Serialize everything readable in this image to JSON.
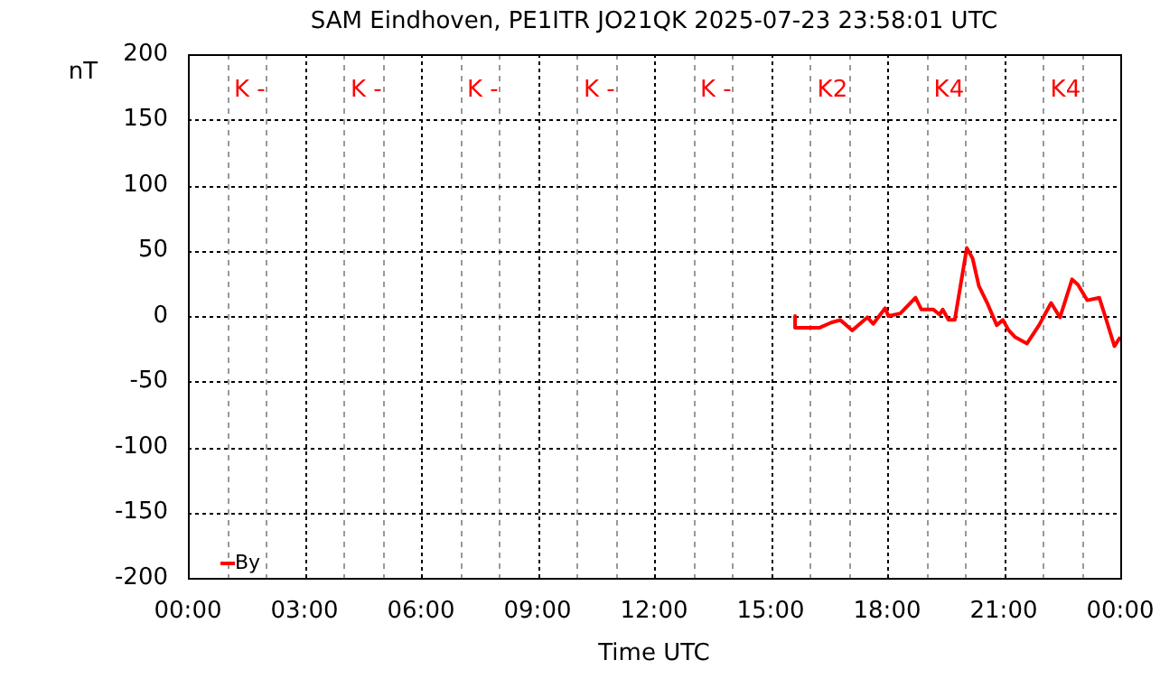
{
  "chart_data": {
    "type": "line",
    "title": "SAM Eindhoven, PE1ITR JO21QK 2025-07-23 23:58:01 UTC",
    "xlabel": "Time UTC",
    "ylabel": "nT",
    "x": [
      15.63,
      15.63,
      16.25,
      16.56,
      16.79,
      16.95,
      17.1,
      17.49,
      17.64,
      17.95,
      18.03,
      18.34,
      18.73,
      18.88,
      19.19,
      19.35,
      19.43,
      19.58,
      19.74,
      20.05,
      20.2,
      20.36,
      20.59,
      20.82,
      20.98,
      21.13,
      21.29,
      21.6,
      21.91,
      22.22,
      22.45,
      22.76,
      22.91,
      23.15,
      23.46,
      23.61,
      23.85,
      24.0
    ],
    "series": [
      {
        "name": "By",
        "color": "#ff0000",
        "values": [
          0,
          -9,
          -9,
          -5,
          -3,
          -7,
          -11,
          -1,
          -6,
          6,
          0,
          2,
          14,
          5,
          5,
          1,
          5,
          -3,
          -3,
          52,
          44,
          23,
          9,
          -7,
          -3,
          -11,
          -16,
          -21,
          -7,
          10,
          -1,
          28,
          24,
          12,
          14,
          0,
          -23,
          -16
        ]
      }
    ],
    "xlim": [
      0,
      24
    ],
    "xticks": [
      {
        "value": 0,
        "label": "00:00"
      },
      {
        "value": 1,
        "label": null
      },
      {
        "value": 2,
        "label": null
      },
      {
        "value": 3,
        "label": "03:00"
      },
      {
        "value": 4,
        "label": null
      },
      {
        "value": 5,
        "label": null
      },
      {
        "value": 6,
        "label": "06:00"
      },
      {
        "value": 7,
        "label": null
      },
      {
        "value": 8,
        "label": null
      },
      {
        "value": 9,
        "label": "09:00"
      },
      {
        "value": 10,
        "label": null
      },
      {
        "value": 11,
        "label": null
      },
      {
        "value": 12,
        "label": "12:00"
      },
      {
        "value": 13,
        "label": null
      },
      {
        "value": 14,
        "label": null
      },
      {
        "value": 15,
        "label": "15:00"
      },
      {
        "value": 16,
        "label": null
      },
      {
        "value": 17,
        "label": null
      },
      {
        "value": 18,
        "label": "18:00"
      },
      {
        "value": 19,
        "label": null
      },
      {
        "value": 20,
        "label": null
      },
      {
        "value": 21,
        "label": "21:00"
      },
      {
        "value": 22,
        "label": null
      },
      {
        "value": 23,
        "label": null
      },
      {
        "value": 24,
        "label": "00:00"
      }
    ],
    "ylim": [
      -200,
      200
    ],
    "yticks": [
      -200,
      -150,
      -100,
      -50,
      0,
      50,
      100,
      150,
      200
    ],
    "grid": true,
    "legend": "bottom left",
    "marker": "none",
    "line_style": "solid",
    "annotations": [
      "K -",
      "K -",
      "K -",
      "K -",
      "K -",
      "K2",
      "K4",
      "K4"
    ]
  }
}
